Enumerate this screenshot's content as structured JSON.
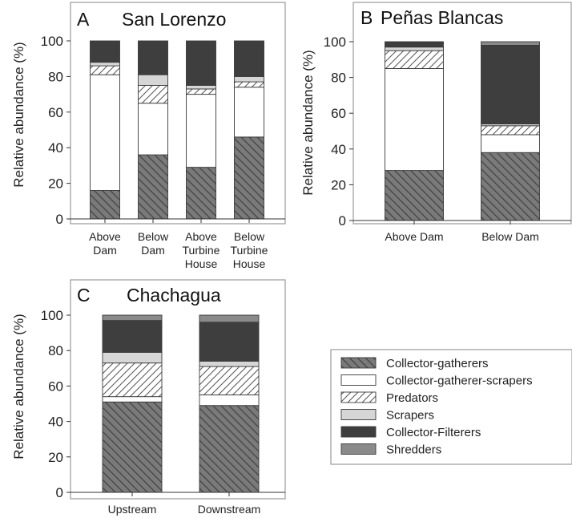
{
  "figure": {
    "legend": [
      {
        "name": "Collector-gatherers",
        "pattern": "hatch-dark"
      },
      {
        "name": "Collector-gatherer-scrapers",
        "pattern": "white"
      },
      {
        "name": "Predators",
        "pattern": "hatch-light"
      },
      {
        "name": "Scrapers",
        "pattern": "light-gray"
      },
      {
        "name": "Collector-Filterers",
        "pattern": "dark"
      },
      {
        "name": "Shredders",
        "pattern": "mid-gray"
      }
    ],
    "colors": {
      "collector_gatherers": "#7a7a7a",
      "collector_gatherer_scrapers": "#ffffff",
      "predators": "#ffffff",
      "scrapers": "#d6d6d6",
      "collector_filterers": "#3e3e3e",
      "shredders": "#8a8a8a"
    }
  },
  "chart_data": [
    {
      "type": "bar",
      "stacked": true,
      "panel_letter": "A",
      "title": "San Lorenzo",
      "ylabel": "Relative abundance (%)",
      "ylim": [
        0,
        100
      ],
      "yticks": [
        "0",
        "20",
        "40",
        "60",
        "80",
        "100"
      ],
      "categories": [
        [
          "Above",
          "Dam"
        ],
        [
          "Below",
          "Dam"
        ],
        [
          "Above",
          "Turbine",
          "House"
        ],
        [
          "Below",
          "Turbine",
          "House"
        ]
      ],
      "series": [
        {
          "name": "Collector-gatherers",
          "values": [
            16,
            36,
            29,
            46
          ]
        },
        {
          "name": "Collector-gatherer-scrapers",
          "values": [
            65,
            29,
            41,
            28
          ]
        },
        {
          "name": "Predators",
          "values": [
            5,
            10,
            3,
            3
          ]
        },
        {
          "name": "Scrapers",
          "values": [
            2,
            6,
            2,
            3
          ]
        },
        {
          "name": "Collector-Filterers",
          "values": [
            12,
            19,
            25,
            20
          ]
        },
        {
          "name": "Shredders",
          "values": [
            0,
            0,
            0,
            0
          ]
        }
      ]
    },
    {
      "type": "bar",
      "stacked": true,
      "panel_letter": "B",
      "title": "Peñas Blancas",
      "ylabel": "Relative abundance (%)",
      "ylim": [
        0,
        100
      ],
      "yticks": [
        "0",
        "20",
        "40",
        "60",
        "80",
        "100"
      ],
      "categories": [
        [
          "Above Dam"
        ],
        [
          "Below Dam"
        ]
      ],
      "series": [
        {
          "name": "Collector-gatherers",
          "values": [
            28,
            38
          ]
        },
        {
          "name": "Collector-gatherer-scrapers",
          "values": [
            57,
            10
          ]
        },
        {
          "name": "Predators",
          "values": [
            10,
            5
          ]
        },
        {
          "name": "Scrapers",
          "values": [
            2,
            1
          ]
        },
        {
          "name": "Collector-Filterers",
          "values": [
            3,
            44
          ]
        },
        {
          "name": "Shredders",
          "values": [
            0,
            2
          ]
        }
      ]
    },
    {
      "type": "bar",
      "stacked": true,
      "panel_letter": "C",
      "title": "Chachagua",
      "ylabel": "Relative abundance (%)",
      "ylim": [
        0,
        100
      ],
      "yticks": [
        "0",
        "20",
        "40",
        "60",
        "80",
        "100"
      ],
      "categories": [
        [
          "Upstream"
        ],
        [
          "Downstream"
        ]
      ],
      "series": [
        {
          "name": "Collector-gatherers",
          "values": [
            51,
            49
          ]
        },
        {
          "name": "Collector-gatherer-scrapers",
          "values": [
            3,
            6
          ]
        },
        {
          "name": "Predators",
          "values": [
            19,
            16
          ]
        },
        {
          "name": "Scrapers",
          "values": [
            6,
            3
          ]
        },
        {
          "name": "Collector-Filterers",
          "values": [
            18,
            22
          ]
        },
        {
          "name": "Shredders",
          "values": [
            3,
            4
          ]
        }
      ]
    }
  ]
}
